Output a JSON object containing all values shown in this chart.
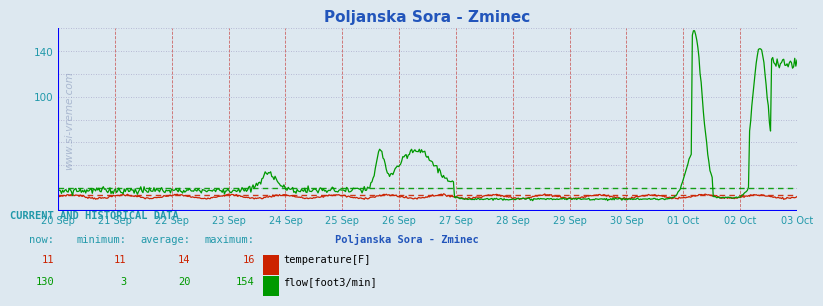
{
  "title": "Poljanska Sora - Zminec",
  "title_color": "#2255bb",
  "title_fontsize": 11,
  "bg_color": "#dde8f0",
  "plot_bg_color": "#dde8f0",
  "x_tick_labels": [
    "20 Sep",
    "21 Sep",
    "22 Sep",
    "23 Sep",
    "24 Sep",
    "25 Sep",
    "26 Sep",
    "27 Sep",
    "28 Sep",
    "29 Sep",
    "30 Sep",
    "01 Oct",
    "02 Oct",
    "03 Oct"
  ],
  "ytick_labels_show": [
    100,
    140
  ],
  "ylim": [
    0,
    160
  ],
  "grid_color_h": "#aaaacc",
  "grid_color_v": "#cc6666",
  "watermark": "www.si-vreme.com",
  "temp_color": "#cc2200",
  "flow_color": "#009900",
  "legend_title": "Poljanska Sora - Zminec",
  "legend_title_color": "#2255bb",
  "legend_entries": [
    "temperature[F]",
    "flow[foot3/min]"
  ],
  "legend_colors": [
    "#cc2200",
    "#009900"
  ],
  "table_header_label": "CURRENT AND HISTORICAL DATA",
  "table_col_headers": [
    "now:",
    "minimum:",
    "average:",
    "maximum:"
  ],
  "table_temp": [
    11,
    11,
    14,
    16
  ],
  "table_flow": [
    130,
    3,
    20,
    154
  ],
  "table_color": "#2299aa",
  "temp_ref": 14,
  "flow_ref": 20
}
